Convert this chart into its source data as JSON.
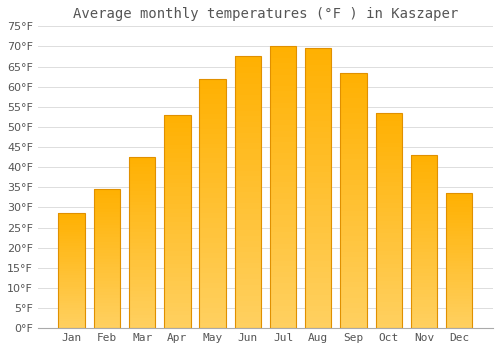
{
  "title": "Average monthly temperatures (°F ) in Kaszaper",
  "months": [
    "Jan",
    "Feb",
    "Mar",
    "Apr",
    "May",
    "Jun",
    "Jul",
    "Aug",
    "Sep",
    "Oct",
    "Nov",
    "Dec"
  ],
  "temperatures": [
    28.5,
    34.5,
    42.5,
    53.0,
    62.0,
    67.5,
    70.0,
    69.5,
    63.5,
    53.5,
    43.0,
    33.5
  ],
  "bar_color_top": "#FFD060",
  "bar_color_bottom": "#FFB000",
  "bar_edge_color": "#E09000",
  "background_color": "#FFFFFF",
  "grid_color": "#DDDDDD",
  "text_color": "#555555",
  "ylim": [
    0,
    75
  ],
  "yticks": [
    0,
    5,
    10,
    15,
    20,
    25,
    30,
    35,
    40,
    45,
    50,
    55,
    60,
    65,
    70,
    75
  ],
  "title_fontsize": 10,
  "tick_fontsize": 8,
  "bar_width": 0.75
}
